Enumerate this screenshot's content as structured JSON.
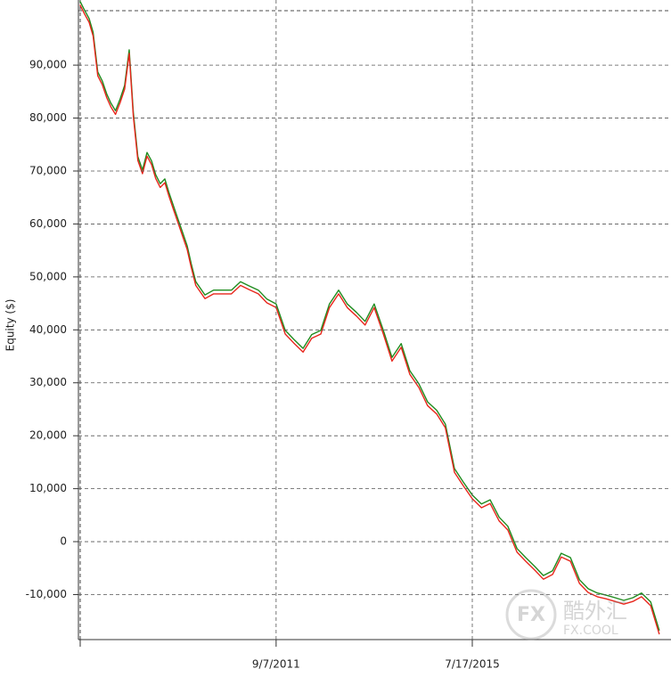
{
  "chart_data": {
    "type": "line",
    "y_label": "Equity ($)",
    "x": [
      2007.82,
      2007.91,
      2008.0,
      2008.08,
      2008.17,
      2008.26,
      2008.35,
      2008.43,
      2008.52,
      2008.61,
      2008.7,
      2008.79,
      2008.87,
      2008.96,
      2009.05,
      2009.14,
      2009.23,
      2009.31,
      2009.4,
      2009.49,
      2009.57,
      2009.66,
      2009.75,
      2009.84,
      2009.93,
      2010.01,
      2010.1,
      2010.28,
      2010.45,
      2010.63,
      2010.8,
      2010.98,
      2011.15,
      2011.33,
      2011.5,
      2011.68,
      2011.86,
      2012.03,
      2012.21,
      2012.38,
      2012.56,
      2012.73,
      2012.91,
      2013.08,
      2013.26,
      2013.43,
      2013.61,
      2013.79,
      2013.96,
      2014.14,
      2014.31,
      2014.49,
      2014.66,
      2014.84,
      2015.01,
      2015.19,
      2015.36,
      2015.54,
      2015.72,
      2015.89,
      2016.07,
      2016.24,
      2016.42,
      2016.59,
      2016.77,
      2016.94,
      2017.12,
      2017.29,
      2017.47,
      2017.65,
      2017.82,
      2018.0,
      2018.17,
      2018.35,
      2018.52,
      2018.7,
      2018.87,
      2019.05,
      2019.22
    ],
    "series": [
      {
        "color": "#1e8c1e",
        "values": [
          102100,
          100400,
          98800,
          96200,
          88700,
          87000,
          84500,
          82800,
          81400,
          83600,
          86200,
          92900,
          81100,
          72700,
          70200,
          73500,
          71900,
          69300,
          67600,
          68500,
          66000,
          63400,
          60900,
          58400,
          55900,
          52500,
          49100,
          46600,
          47500,
          47500,
          47500,
          49100,
          48300,
          47500,
          45800,
          44900,
          39900,
          38200,
          36500,
          39100,
          39900,
          44900,
          47500,
          44900,
          43300,
          41600,
          44900,
          39900,
          34800,
          37400,
          32300,
          29800,
          26400,
          24800,
          22200,
          13800,
          11300,
          8800,
          7100,
          7900,
          4600,
          2900,
          -1300,
          -3000,
          -4700,
          -6400,
          -5500,
          -2200,
          -3000,
          -7200,
          -8900,
          -9700,
          -10100,
          -10600,
          -11100,
          -10600,
          -9700,
          -11400,
          -16800
        ]
      },
      {
        "color": "#e8261c",
        "values": [
          101400,
          99700,
          98100,
          95500,
          88000,
          86300,
          83800,
          82100,
          80700,
          82900,
          85500,
          92200,
          80400,
          72000,
          69500,
          72800,
          71200,
          68600,
          66900,
          67800,
          65300,
          62700,
          60200,
          57700,
          55200,
          51800,
          48400,
          45900,
          46800,
          46800,
          46800,
          48400,
          47600,
          46800,
          45100,
          44200,
          39200,
          37500,
          35800,
          38400,
          39200,
          44200,
          46800,
          44200,
          42600,
          40900,
          44200,
          39200,
          34100,
          36700,
          31600,
          29100,
          25700,
          24100,
          21500,
          13100,
          10600,
          8100,
          6400,
          7200,
          3900,
          2200,
          -2000,
          -3700,
          -5400,
          -7100,
          -6200,
          -2900,
          -3700,
          -7900,
          -9600,
          -10400,
          -10800,
          -11300,
          -11800,
          -11300,
          -10400,
          -12100,
          -17500
        ]
      }
    ],
    "xlim": [
      2007.79,
      2019.45
    ],
    "xticks": [
      {
        "value": 2011.68,
        "label": "9/7/2011"
      },
      {
        "value": 2015.54,
        "label": "7/17/2015"
      }
    ],
    "ylim": [
      -18500,
      102300
    ],
    "yticks": [
      {
        "value": -10000,
        "label": "-10,000"
      },
      0,
      {
        "value": 10000,
        "label": "10,000"
      },
      {
        "value": 20000,
        "label": "20,000"
      },
      {
        "value": 30000,
        "label": "30,000"
      },
      {
        "value": 40000,
        "label": "40,000"
      },
      {
        "value": 50000,
        "label": "50,000"
      },
      {
        "value": 60000,
        "label": "60,000"
      },
      {
        "value": 70000,
        "label": "70,000"
      },
      {
        "value": 80000,
        "label": "80,000"
      },
      {
        "value": 90000,
        "label": "90,000"
      }
    ],
    "grid": true
  },
  "watermark": {
    "logo": "FX",
    "name": "酷外汇",
    "site": "FX.COOL"
  }
}
